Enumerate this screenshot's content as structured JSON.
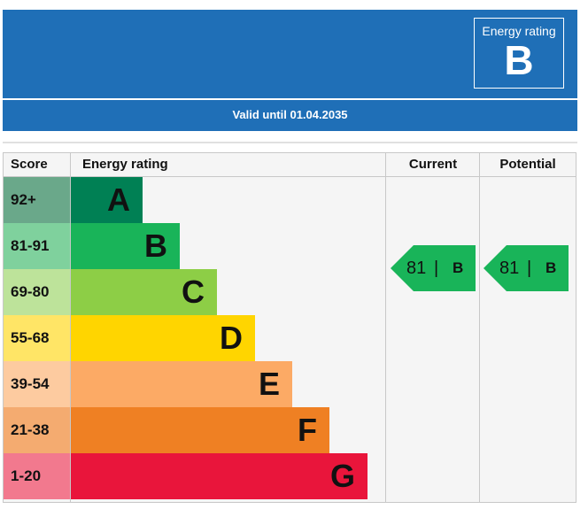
{
  "header": {
    "rating_title": "Energy rating",
    "rating_letter": "B",
    "valid_until": "Valid until 01.04.2035"
  },
  "table": {
    "col_score": "Score",
    "col_rating": "Energy rating",
    "col_current": "Current",
    "col_potential": "Potential"
  },
  "bands": [
    {
      "score": "92+",
      "letter": "A",
      "color": "#008054",
      "score_bg": "#6aa88a"
    },
    {
      "score": "81-91",
      "letter": "B",
      "color": "#19b459",
      "score_bg": "#7fd19d"
    },
    {
      "score": "69-80",
      "letter": "C",
      "color": "#8dce46",
      "score_bg": "#bde39a"
    },
    {
      "score": "55-68",
      "letter": "D",
      "color": "#ffd500",
      "score_bg": "#ffe566"
    },
    {
      "score": "39-54",
      "letter": "E",
      "color": "#fcaa65",
      "score_bg": "#fdcba0"
    },
    {
      "score": "21-38",
      "letter": "F",
      "color": "#ef8023",
      "score_bg": "#f4ab70"
    },
    {
      "score": "1-20",
      "letter": "G",
      "color": "#e9153b",
      "score_bg": "#f2798e"
    }
  ],
  "current": {
    "score": "81",
    "separator": "|",
    "letter": "B",
    "color": "#19b459"
  },
  "potential": {
    "score": "81",
    "separator": "|",
    "letter": "B",
    "color": "#19b459"
  }
}
